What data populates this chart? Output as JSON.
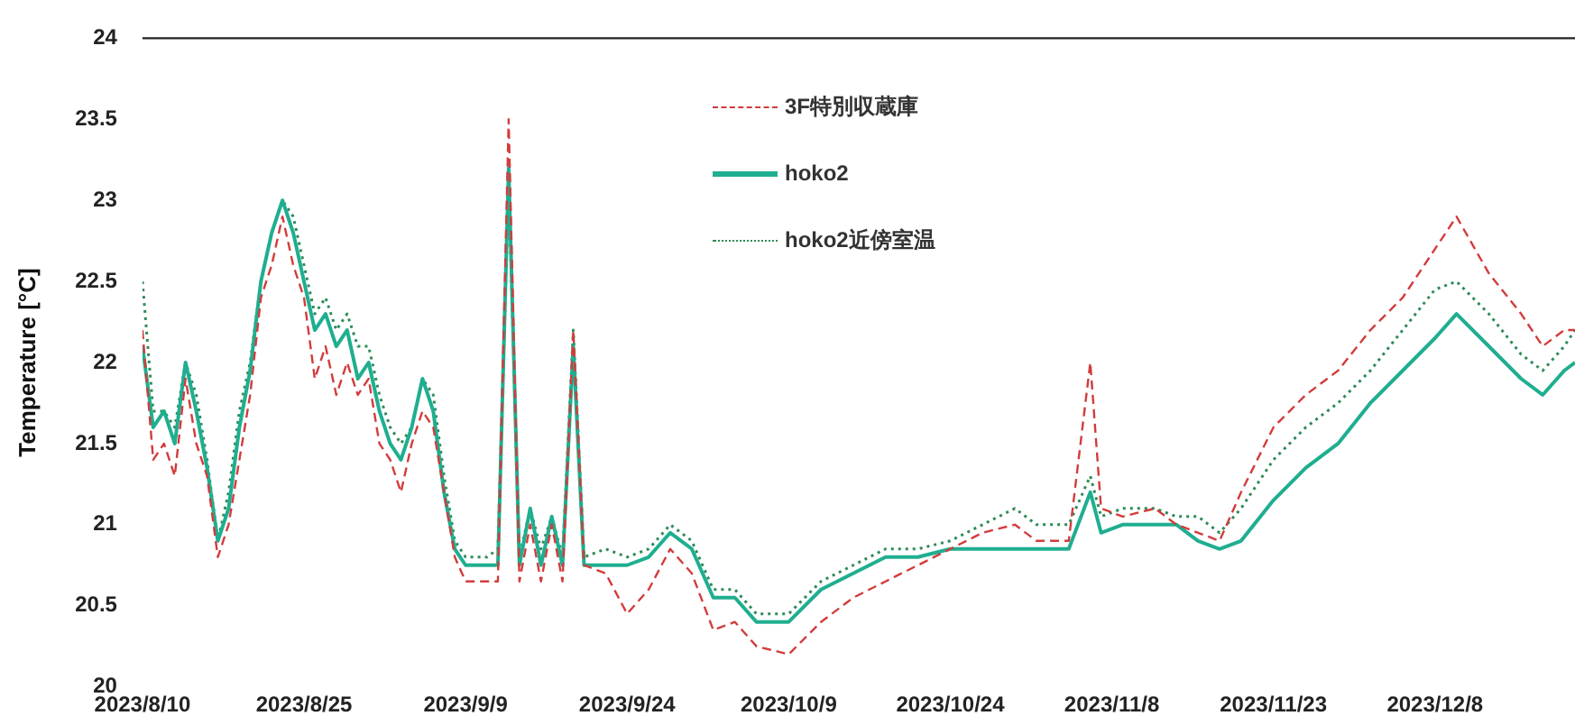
{
  "chart_data": {
    "type": "line",
    "ylabel": "Temperature [°C]",
    "x": [
      "2023-08-10",
      "2023-08-11",
      "2023-08-12",
      "2023-08-13",
      "2023-08-14",
      "2023-08-15",
      "2023-08-16",
      "2023-08-17",
      "2023-08-18",
      "2023-08-19",
      "2023-08-20",
      "2023-08-21",
      "2023-08-22",
      "2023-08-23",
      "2023-08-24",
      "2023-08-25",
      "2023-08-26",
      "2023-08-27",
      "2023-08-28",
      "2023-08-29",
      "2023-08-30",
      "2023-08-31",
      "2023-09-01",
      "2023-09-02",
      "2023-09-03",
      "2023-09-04",
      "2023-09-05",
      "2023-09-06",
      "2023-09-07",
      "2023-09-08",
      "2023-09-09",
      "2023-09-11",
      "2023-09-12",
      "2023-09-13",
      "2023-09-14",
      "2023-09-15",
      "2023-09-16",
      "2023-09-17",
      "2023-09-18",
      "2023-09-19",
      "2023-09-20",
      "2023-09-22",
      "2023-09-24",
      "2023-09-26",
      "2023-09-28",
      "2023-09-30",
      "2023-10-02",
      "2023-10-04",
      "2023-10-06",
      "2023-10-09",
      "2023-10-12",
      "2023-10-15",
      "2023-10-18",
      "2023-10-21",
      "2023-10-24",
      "2023-10-27",
      "2023-10-30",
      "2023-11-01",
      "2023-11-04",
      "2023-11-06",
      "2023-11-07",
      "2023-11-09",
      "2023-11-12",
      "2023-11-14",
      "2023-11-16",
      "2023-11-18",
      "2023-11-20",
      "2023-11-23",
      "2023-11-26",
      "2023-11-29",
      "2023-12-02",
      "2023-12-05",
      "2023-12-08",
      "2023-12-10",
      "2023-12-13",
      "2023-12-16",
      "2023-12-18",
      "2023-12-20",
      "2023-12-21"
    ],
    "series": [
      {
        "name": "3F特別収蔵庫",
        "color": "#d23c3c",
        "line_style": "dashed",
        "values": [
          22.2,
          21.4,
          21.5,
          21.3,
          21.9,
          21.5,
          21.3,
          20.8,
          21.0,
          21.4,
          21.8,
          22.4,
          22.6,
          22.9,
          22.6,
          22.4,
          21.9,
          22.1,
          21.8,
          22.0,
          21.8,
          21.9,
          21.5,
          21.4,
          21.2,
          21.5,
          21.7,
          21.6,
          21.2,
          20.8,
          20.65,
          20.65,
          20.65,
          23.5,
          20.65,
          21.0,
          20.65,
          21.0,
          20.65,
          22.2,
          20.75,
          20.7,
          20.45,
          20.6,
          20.85,
          20.7,
          20.35,
          20.4,
          20.25,
          20.2,
          20.4,
          20.55,
          20.65,
          20.75,
          20.85,
          20.95,
          21.0,
          20.9,
          20.9,
          22.0,
          21.1,
          21.05,
          21.1,
          21.0,
          20.95,
          20.9,
          21.2,
          21.6,
          21.8,
          21.95,
          22.2,
          22.4,
          22.7,
          22.9,
          22.55,
          22.3,
          22.1,
          22.2,
          22.2
        ]
      },
      {
        "name": "hoko2",
        "color": "#1fae90",
        "line_style": "solid",
        "values": [
          22.1,
          21.6,
          21.7,
          21.5,
          22.0,
          21.7,
          21.35,
          20.9,
          21.1,
          21.6,
          21.95,
          22.5,
          22.8,
          23.0,
          22.8,
          22.5,
          22.2,
          22.3,
          22.1,
          22.2,
          21.9,
          22.0,
          21.7,
          21.5,
          21.4,
          21.6,
          21.9,
          21.7,
          21.2,
          20.85,
          20.75,
          20.75,
          20.75,
          23.2,
          20.75,
          21.1,
          20.75,
          21.05,
          20.75,
          22.1,
          20.75,
          20.75,
          20.75,
          20.8,
          20.95,
          20.85,
          20.55,
          20.55,
          20.4,
          20.4,
          20.6,
          20.7,
          20.8,
          20.8,
          20.85,
          20.85,
          20.85,
          20.85,
          20.85,
          21.2,
          20.95,
          21.0,
          21.0,
          21.0,
          20.9,
          20.85,
          20.9,
          21.15,
          21.35,
          21.5,
          21.75,
          21.95,
          22.15,
          22.3,
          22.1,
          21.9,
          21.8,
          21.95,
          22.0
        ]
      },
      {
        "name": "hoko2近傍室温",
        "color": "#2e8b57",
        "line_style": "dotted",
        "values": [
          22.5,
          21.7,
          21.7,
          21.6,
          22.0,
          21.8,
          21.4,
          20.9,
          21.2,
          21.7,
          22.0,
          22.5,
          22.8,
          23.0,
          22.9,
          22.6,
          22.3,
          22.4,
          22.2,
          22.3,
          22.1,
          22.1,
          21.8,
          21.6,
          21.5,
          21.6,
          21.9,
          21.8,
          21.3,
          20.9,
          20.8,
          20.8,
          20.85,
          23.1,
          20.8,
          21.1,
          20.85,
          21.05,
          20.8,
          22.2,
          20.8,
          20.85,
          20.8,
          20.85,
          21.0,
          20.9,
          20.6,
          20.6,
          20.45,
          20.45,
          20.65,
          20.75,
          20.85,
          20.85,
          20.9,
          21.0,
          21.1,
          21.0,
          21.0,
          21.3,
          21.05,
          21.1,
          21.1,
          21.05,
          21.05,
          20.95,
          21.1,
          21.4,
          21.6,
          21.75,
          21.95,
          22.2,
          22.45,
          22.5,
          22.3,
          22.05,
          21.95,
          22.1,
          22.2
        ]
      }
    ],
    "xlim": [
      "2023-08-10",
      "2023-12-21"
    ],
    "xticks": [
      {
        "value": "2023-08-10",
        "label": "2023/8/10"
      },
      {
        "value": "2023-08-25",
        "label": "2023/8/25"
      },
      {
        "value": "2023-09-09",
        "label": "2023/9/9"
      },
      {
        "value": "2023-09-24",
        "label": "2023/9/24"
      },
      {
        "value": "2023-10-09",
        "label": "2023/10/9"
      },
      {
        "value": "2023-10-24",
        "label": "2023/10/24"
      },
      {
        "value": "2023-11-08",
        "label": "2023/11/8"
      },
      {
        "value": "2023-11-23",
        "label": "2023/11/23"
      },
      {
        "value": "2023-12-08",
        "label": "2023/12/8"
      }
    ],
    "ylim": [
      20,
      24
    ],
    "yticks": [
      20,
      20.5,
      21,
      21.5,
      22,
      22.5,
      23,
      23.5,
      24
    ],
    "grid": false,
    "legend": "top",
    "marker": "none"
  }
}
